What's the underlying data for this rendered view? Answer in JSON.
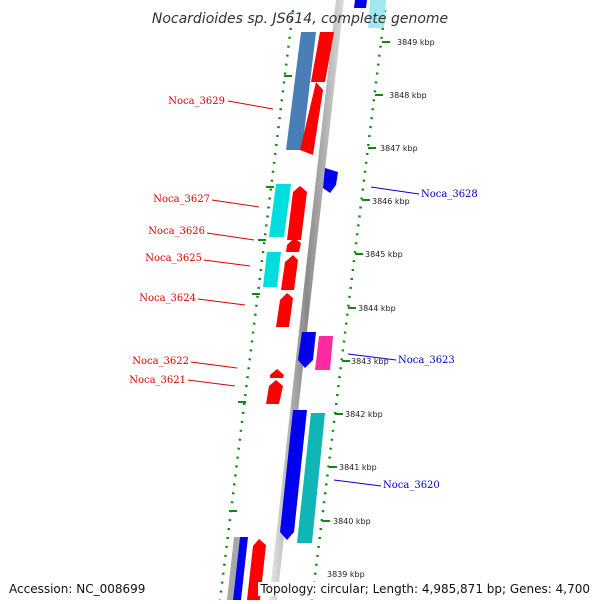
{
  "title": "Nocardioides sp. JS614, complete genome",
  "ticks": [
    {
      "label": "3849 kbp"
    },
    {
      "label": "3848 kbp"
    },
    {
      "label": "3847 kbp"
    },
    {
      "label": "3846 kbp"
    },
    {
      "label": "3845 kbp"
    },
    {
      "label": "3844 kbp"
    },
    {
      "label": "3843 kbp"
    },
    {
      "label": "3842 kbp"
    },
    {
      "label": "3841 kbp"
    },
    {
      "label": "3840 kbp"
    },
    {
      "label": "3839 kbp"
    }
  ],
  "gene_labels": [
    {
      "text": "Noca_3629",
      "color": "#dd0000"
    },
    {
      "text": "Noca_3628",
      "color": "#0000cc"
    },
    {
      "text": "Noca_3627",
      "color": "#dd0000"
    },
    {
      "text": "Noca_3626",
      "color": "#dd0000"
    },
    {
      "text": "Noca_3625",
      "color": "#dd0000"
    },
    {
      "text": "Noca_3624",
      "color": "#dd0000"
    },
    {
      "text": "Noca_3623",
      "color": "#0000cc"
    },
    {
      "text": "Noca_3622",
      "color": "#dd0000"
    },
    {
      "text": "Noca_3621",
      "color": "#dd0000"
    },
    {
      "text": "Noca_3620",
      "color": "#0000cc"
    }
  ],
  "colors": {
    "forward_cds": "#ff0000",
    "reverse_cds": "#0000ee",
    "cyan_feature": "#00dddd",
    "steel_blue_feature": "#4a7fb5",
    "teal_feature": "#10b5b5",
    "magenta_feature": "#ff2aa0",
    "backbone": "#8c8c8c",
    "gc_dots": "#118811"
  },
  "footer": {
    "accession": "Accession: NC_008699",
    "summary": "Topology: circular; Length: 4,985,871 bp; Genes: 4,700"
  }
}
